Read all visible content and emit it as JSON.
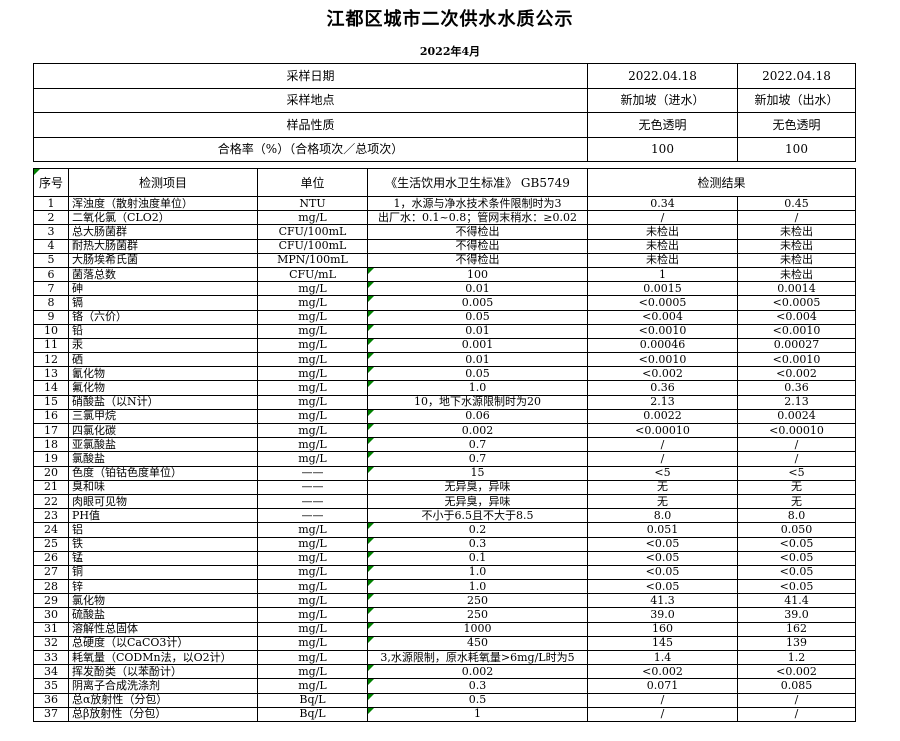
{
  "colors": {
    "flag_green": "#008000",
    "border": "#000000"
  },
  "page": {
    "title": "江都区城市二次供水水质公示",
    "subtitle": "2022年4月"
  },
  "info_table": {
    "rows": [
      {
        "label": "采样日期",
        "inlet": "2022.04.18",
        "outlet": "2022.04.18"
      },
      {
        "label": "采样地点",
        "inlet": "新加坡（进水）",
        "outlet": "新加坡（出水）"
      },
      {
        "label": "样品性质",
        "inlet": "无色透明",
        "outlet": "无色透明"
      },
      {
        "label": "合格率（%）（合格项次／总项次）",
        "inlet": "100",
        "outlet": "100"
      }
    ]
  },
  "results_table": {
    "headers": {
      "no": "序号",
      "item": "检测项目",
      "unit": "单位",
      "standard": "《生活饮用水卫生标准》 GB5749",
      "result": "检测结果"
    },
    "rows": [
      {
        "no": "1",
        "item": "浑浊度（散射浊度单位）",
        "unit": "NTU",
        "standard": "1，水源与净水技术条件限制时为3",
        "inlet": "0.34",
        "outlet": "0.45",
        "flag": false
      },
      {
        "no": "2",
        "item": "二氧化氯（CLO2）",
        "unit": "mg/L",
        "standard": "出厂水：0.1~0.8；管网末稍水：≥0.02",
        "inlet": "/",
        "outlet": "/",
        "flag": false
      },
      {
        "no": "3",
        "item": "总大肠菌群",
        "unit": "CFU/100mL",
        "standard": "不得检出",
        "inlet": "未检出",
        "outlet": "未检出",
        "flag": false
      },
      {
        "no": "4",
        "item": "耐热大肠菌群",
        "unit": "CFU/100mL",
        "standard": "不得检出",
        "inlet": "未检出",
        "outlet": "未检出",
        "flag": false
      },
      {
        "no": "5",
        "item": "大肠埃希氏菌",
        "unit": "MPN/100mL",
        "standard": "不得检出",
        "inlet": "未检出",
        "outlet": "未检出",
        "flag": false
      },
      {
        "no": "6",
        "item": "菌落总数",
        "unit": "CFU/mL",
        "standard": "100",
        "inlet": "1",
        "outlet": "未检出",
        "flag": true
      },
      {
        "no": "7",
        "item": "砷",
        "unit": "mg/L",
        "standard": "0.01",
        "inlet": "0.0015",
        "outlet": "0.0014",
        "flag": true
      },
      {
        "no": "8",
        "item": "镉",
        "unit": "mg/L",
        "standard": "0.005",
        "inlet": "<0.0005",
        "outlet": "<0.0005",
        "flag": true
      },
      {
        "no": "9",
        "item": "铬（六价）",
        "unit": "mg/L",
        "standard": "0.05",
        "inlet": "<0.004",
        "outlet": "<0.004",
        "flag": true
      },
      {
        "no": "10",
        "item": "铅",
        "unit": "mg/L",
        "standard": "0.01",
        "inlet": "<0.0010",
        "outlet": "<0.0010",
        "flag": true
      },
      {
        "no": "11",
        "item": "汞",
        "unit": "mg/L",
        "standard": "0.001",
        "inlet": "0.00046",
        "outlet": "0.00027",
        "flag": true
      },
      {
        "no": "12",
        "item": "硒",
        "unit": "mg/L",
        "standard": "0.01",
        "inlet": "<0.0010",
        "outlet": "<0.0010",
        "flag": true
      },
      {
        "no": "13",
        "item": "氰化物",
        "unit": "mg/L",
        "standard": "0.05",
        "inlet": "<0.002",
        "outlet": "<0.002",
        "flag": true
      },
      {
        "no": "14",
        "item": "氟化物",
        "unit": "mg/L",
        "standard": "1.0",
        "inlet": "0.36",
        "outlet": "0.36",
        "flag": true
      },
      {
        "no": "15",
        "item": "硝酸盐（以N计）",
        "unit": "mg/L",
        "standard": "10，地下水源限制时为20",
        "inlet": "2.13",
        "outlet": "2.13",
        "flag": false
      },
      {
        "no": "16",
        "item": "三氯甲烷",
        "unit": "mg/L",
        "standard": "0.06",
        "inlet": "0.0022",
        "outlet": "0.0024",
        "flag": true
      },
      {
        "no": "17",
        "item": "四氯化碳",
        "unit": "mg/L",
        "standard": "0.002",
        "inlet": "<0.00010",
        "outlet": "<0.00010",
        "flag": true
      },
      {
        "no": "18",
        "item": "亚氯酸盐",
        "unit": "mg/L",
        "standard": "0.7",
        "inlet": "/",
        "outlet": "/",
        "flag": true
      },
      {
        "no": "19",
        "item": "氯酸盐",
        "unit": "mg/L",
        "standard": "0.7",
        "inlet": "/",
        "outlet": "/",
        "flag": true
      },
      {
        "no": "20",
        "item": "色度（铂钴色度单位）",
        "unit": "——",
        "standard": "15",
        "inlet": "<5",
        "outlet": "<5",
        "flag": true
      },
      {
        "no": "21",
        "item": "臭和味",
        "unit": "——",
        "standard": "无异臭，异味",
        "inlet": "无",
        "outlet": "无",
        "flag": false
      },
      {
        "no": "22",
        "item": "肉眼可见物",
        "unit": "——",
        "standard": "无异臭，异味",
        "inlet": "无",
        "outlet": "无",
        "flag": false
      },
      {
        "no": "23",
        "item": "PH值",
        "unit": "——",
        "standard": "不小于6.5且不大于8.5",
        "inlet": "8.0",
        "outlet": "8.0",
        "flag": false
      },
      {
        "no": "24",
        "item": "铝",
        "unit": "mg/L",
        "standard": "0.2",
        "inlet": "0.051",
        "outlet": "0.050",
        "flag": true
      },
      {
        "no": "25",
        "item": "铁",
        "unit": "mg/L",
        "standard": "0.3",
        "inlet": "<0.05",
        "outlet": "<0.05",
        "flag": true
      },
      {
        "no": "26",
        "item": "锰",
        "unit": "mg/L",
        "standard": "0.1",
        "inlet": "<0.05",
        "outlet": "<0.05",
        "flag": true
      },
      {
        "no": "27",
        "item": "铜",
        "unit": "mg/L",
        "standard": "1.0",
        "inlet": "<0.05",
        "outlet": "<0.05",
        "flag": true
      },
      {
        "no": "28",
        "item": "锌",
        "unit": "mg/L",
        "standard": "1.0",
        "inlet": "<0.05",
        "outlet": "<0.05",
        "flag": true
      },
      {
        "no": "29",
        "item": "氯化物",
        "unit": "mg/L",
        "standard": "250",
        "inlet": "41.3",
        "outlet": "41.4",
        "flag": true
      },
      {
        "no": "30",
        "item": "硫酸盐",
        "unit": "mg/L",
        "standard": "250",
        "inlet": "39.0",
        "outlet": "39.0",
        "flag": true
      },
      {
        "no": "31",
        "item": "溶解性总固体",
        "unit": "mg/L",
        "standard": "1000",
        "inlet": "160",
        "outlet": "162",
        "flag": true
      },
      {
        "no": "32",
        "item": "总硬度（以CaCO3计）",
        "unit": "mg/L",
        "standard": "450",
        "inlet": "145",
        "outlet": "139",
        "flag": true
      },
      {
        "no": "33",
        "item": "耗氧量（CODMn法，以O2计）",
        "unit": "mg/L",
        "standard": "3,水源限制，原水耗氧量>6mg/L时为5",
        "inlet": "1.4",
        "outlet": "1.2",
        "flag": false
      },
      {
        "no": "34",
        "item": "挥发酚类（以苯酚计）",
        "unit": "mg/L",
        "standard": "0.002",
        "inlet": "<0.002",
        "outlet": "<0.002",
        "flag": true
      },
      {
        "no": "35",
        "item": "阴离子合成洗涤剂",
        "unit": "mg/L",
        "standard": "0.3",
        "inlet": "0.071",
        "outlet": "0.085",
        "flag": true
      },
      {
        "no": "36",
        "item": "总α放射性（分包）",
        "unit": "Bq/L",
        "standard": "0.5",
        "inlet": "/",
        "outlet": "/",
        "flag": true
      },
      {
        "no": "37",
        "item": "总β放射性（分包）",
        "unit": "Bq/L",
        "standard": "1",
        "inlet": "/",
        "outlet": "/",
        "flag": true
      }
    ]
  }
}
